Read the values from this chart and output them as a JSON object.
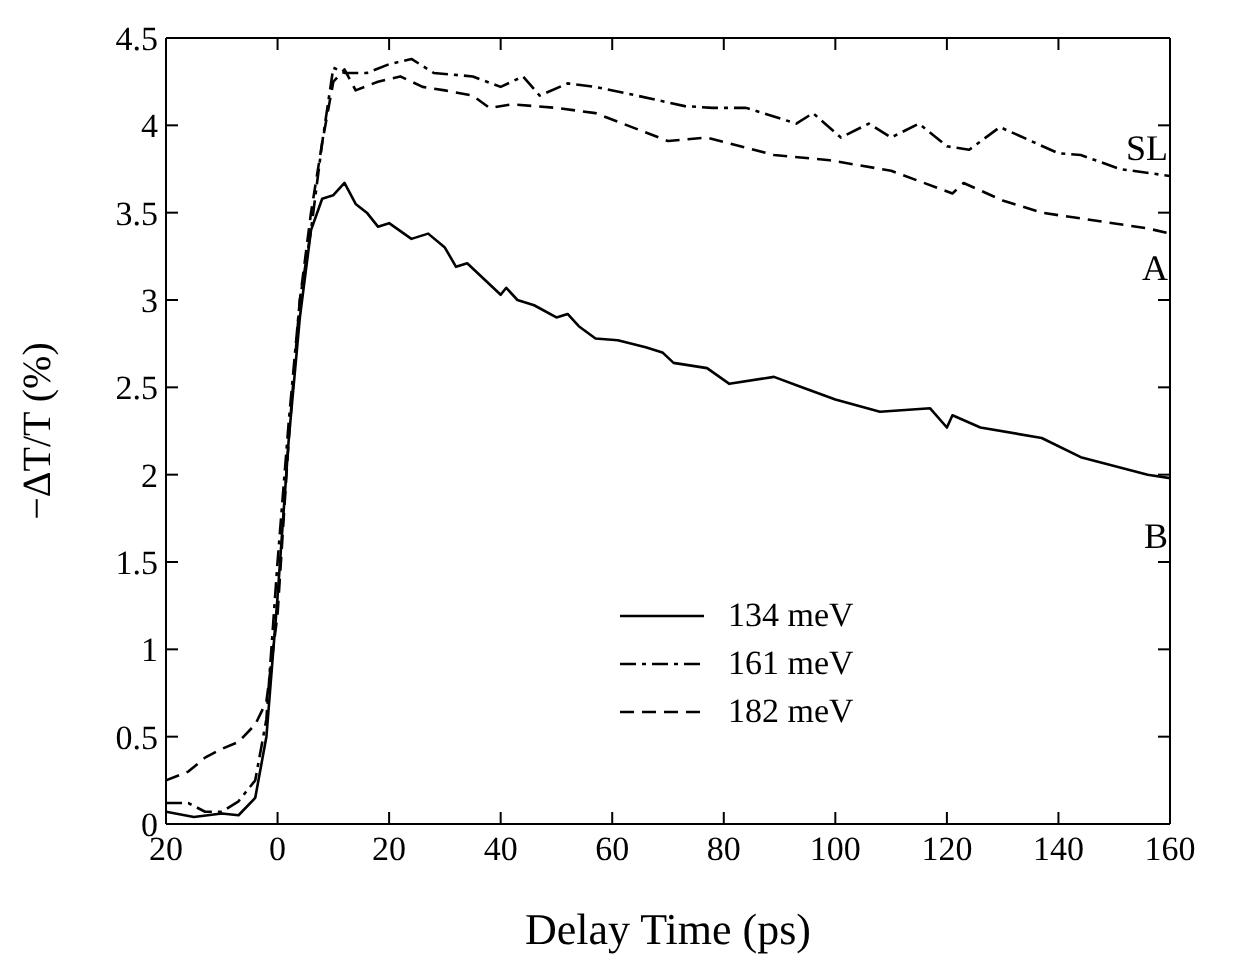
{
  "chart_data": {
    "type": "line",
    "xlabel": "Delay Time (ps)",
    "ylabel": "−ΔT/T (%)",
    "xlim": [
      -20,
      160
    ],
    "xticks": [
      {
        "value": -20,
        "label": "20"
      },
      0,
      20,
      40,
      60,
      80,
      100,
      120,
      140,
      160
    ],
    "ylim": [
      0,
      4.5
    ],
    "yticks": [
      0,
      0.5,
      1,
      1.5,
      2,
      2.5,
      3,
      3.5,
      4,
      4.5
    ],
    "legend": "bottom",
    "marker": "none",
    "annotations": [
      "SL",
      "A",
      "B"
    ],
    "series": [
      {
        "name": "134 meV",
        "color": "#000000",
        "line_style": "solid",
        "x": [
          -20,
          -15,
          -10,
          -7,
          -4,
          -2,
          0,
          2,
          4,
          6,
          8,
          10,
          12,
          14,
          16,
          18,
          20,
          24,
          27,
          30,
          32,
          34,
          37,
          40,
          41,
          43,
          46,
          50,
          52,
          54,
          57,
          61,
          66,
          69,
          71,
          77,
          81,
          89,
          94,
          100,
          108,
          117,
          120,
          121,
          126,
          137,
          144,
          156,
          160
        ],
        "values": [
          0.07,
          0.04,
          0.06,
          0.05,
          0.15,
          0.5,
          1.3,
          2.2,
          2.9,
          3.4,
          3.58,
          3.6,
          3.67,
          3.55,
          3.5,
          3.42,
          3.44,
          3.35,
          3.38,
          3.3,
          3.19,
          3.21,
          3.12,
          3.03,
          3.07,
          3.0,
          2.97,
          2.9,
          2.92,
          2.85,
          2.78,
          2.77,
          2.73,
          2.7,
          2.64,
          2.61,
          2.52,
          2.56,
          2.5,
          2.43,
          2.36,
          2.38,
          2.27,
          2.34,
          2.27,
          2.21,
          2.1,
          2.0,
          1.98
        ]
      },
      {
        "name": "161 meV",
        "color": "#000000",
        "line_style": "dashdot",
        "x": [
          -20,
          -16,
          -13,
          -10,
          -7,
          -4,
          -2,
          0,
          2,
          4,
          6,
          8,
          10,
          12,
          16,
          20,
          24,
          28,
          35,
          40,
          44,
          47,
          52,
          57,
          63,
          73,
          78,
          84,
          93,
          96,
          101,
          106,
          110,
          115,
          120,
          124,
          129.5,
          140,
          144,
          151,
          160
        ],
        "values": [
          0.12,
          0.12,
          0.07,
          0.07,
          0.13,
          0.25,
          0.6,
          1.5,
          2.3,
          3.0,
          3.4,
          3.9,
          4.33,
          4.3,
          4.3,
          4.35,
          4.38,
          4.3,
          4.28,
          4.22,
          4.28,
          4.17,
          4.24,
          4.22,
          4.18,
          4.11,
          4.1,
          4.1,
          4.01,
          4.07,
          3.93,
          4.01,
          3.93,
          4.01,
          3.88,
          3.86,
          3.99,
          3.84,
          3.83,
          3.75,
          3.71
        ]
      },
      {
        "name": "182 meV",
        "color": "#000000",
        "line_style": "dashed",
        "x": [
          -20,
          -16,
          -13,
          -10,
          -7,
          -4,
          -2,
          0,
          2,
          4,
          6,
          8,
          10,
          12,
          14,
          18,
          22,
          26,
          30,
          35,
          38,
          42,
          50,
          57,
          70,
          77,
          89,
          99,
          110,
          121,
          123,
          130,
          137,
          156,
          160
        ],
        "values": [
          0.25,
          0.3,
          0.38,
          0.43,
          0.47,
          0.57,
          0.7,
          1.2,
          2.2,
          3.0,
          3.5,
          3.9,
          4.25,
          4.32,
          4.2,
          4.25,
          4.28,
          4.22,
          4.2,
          4.17,
          4.1,
          4.12,
          4.1,
          4.07,
          3.91,
          3.93,
          3.83,
          3.8,
          3.74,
          3.61,
          3.67,
          3.57,
          3.5,
          3.41,
          3.38
        ]
      }
    ]
  }
}
